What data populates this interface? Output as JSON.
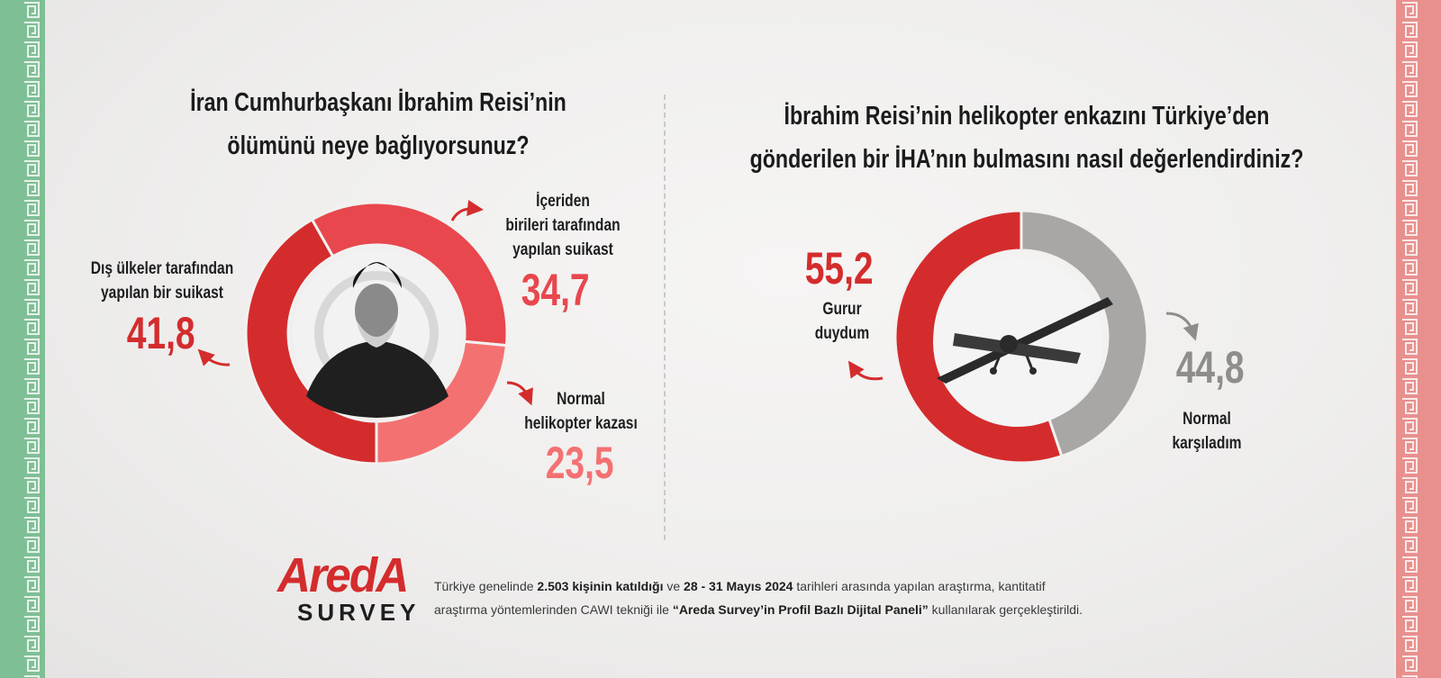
{
  "colors": {
    "red_dark": "#d42c2d",
    "red_mid": "#e8474d",
    "red_light": "#f47172",
    "gray": "#a8a7a6",
    "gray_text": "#8e8d8c",
    "band_left": "#7fbf95",
    "band_right": "#e8908e"
  },
  "chart_data": [
    {
      "type": "pie",
      "title": "İran Cumhurbaşkanı İbrahim Reisi’nin ölümünü neye bağlıyorsunuz?",
      "title_lines": [
        "İran Cumhurbaşkanı İbrahim Reisi’nin",
        "ölümünü neye bağlıyorsunuz?"
      ],
      "style": "donut",
      "slices": [
        {
          "label": "Dış ülkeler tarafından yapılan bir suikast",
          "label_lines": [
            "Dış ülkeler tarafından",
            "yapılan bir suikast"
          ],
          "value": 41.8,
          "value_text": "41,8",
          "color": "#d42c2d"
        },
        {
          "label": "İçeriden birileri tarafından yapılan suikast",
          "label_lines": [
            "İçeriden",
            "birileri tarafından",
            "yapılan suikast"
          ],
          "value": 34.7,
          "value_text": "34,7",
          "color": "#e8474d"
        },
        {
          "label": "Normal helikopter kazası",
          "label_lines": [
            "Normal",
            "helikopter kazası"
          ],
          "value": 23.5,
          "value_text": "23,5",
          "color": "#f47172"
        }
      ]
    },
    {
      "type": "pie",
      "title": "İbrahim Reisi’nin helikopter enkazını Türkiye’den gönderilen bir İHA’nın bulmasını nasıl değerlendirdiniz?",
      "title_lines": [
        "İbrahim Reisi’nin helikopter enkazını Türkiye’den",
        "gönderilen bir İHA’nın bulmasını nasıl değerlendirdiniz?"
      ],
      "style": "donut",
      "slices": [
        {
          "label": "Gurur duydum",
          "label_lines": [
            "Gurur",
            "duydum"
          ],
          "value": 55.2,
          "value_text": "55,2",
          "color": "#d42c2d"
        },
        {
          "label": "Normal karşıladım",
          "label_lines": [
            "Normal",
            "karşıladım"
          ],
          "value": 44.8,
          "value_text": "44,8",
          "color": "#a8a7a6"
        }
      ]
    }
  ],
  "footer": {
    "logo_text": "AredA",
    "logo_sub": "SURVEY",
    "note_1a": "Türkiye genelinde ",
    "note_1b": "2.503 kişinin katıldığı",
    "note_1c": " ve ",
    "note_1d": "28 - 31 Mayıs 2024",
    "note_1e": " tarihleri arasında yapılan araştırma, kantitatif",
    "note_2a": "araştırma yöntemlerinden CAWI tekniği ile ",
    "note_2b": "“Areda Survey’in Profil Bazlı Dijital Paneli”",
    "note_2c": " kullanılarak gerçekleştirildi."
  }
}
